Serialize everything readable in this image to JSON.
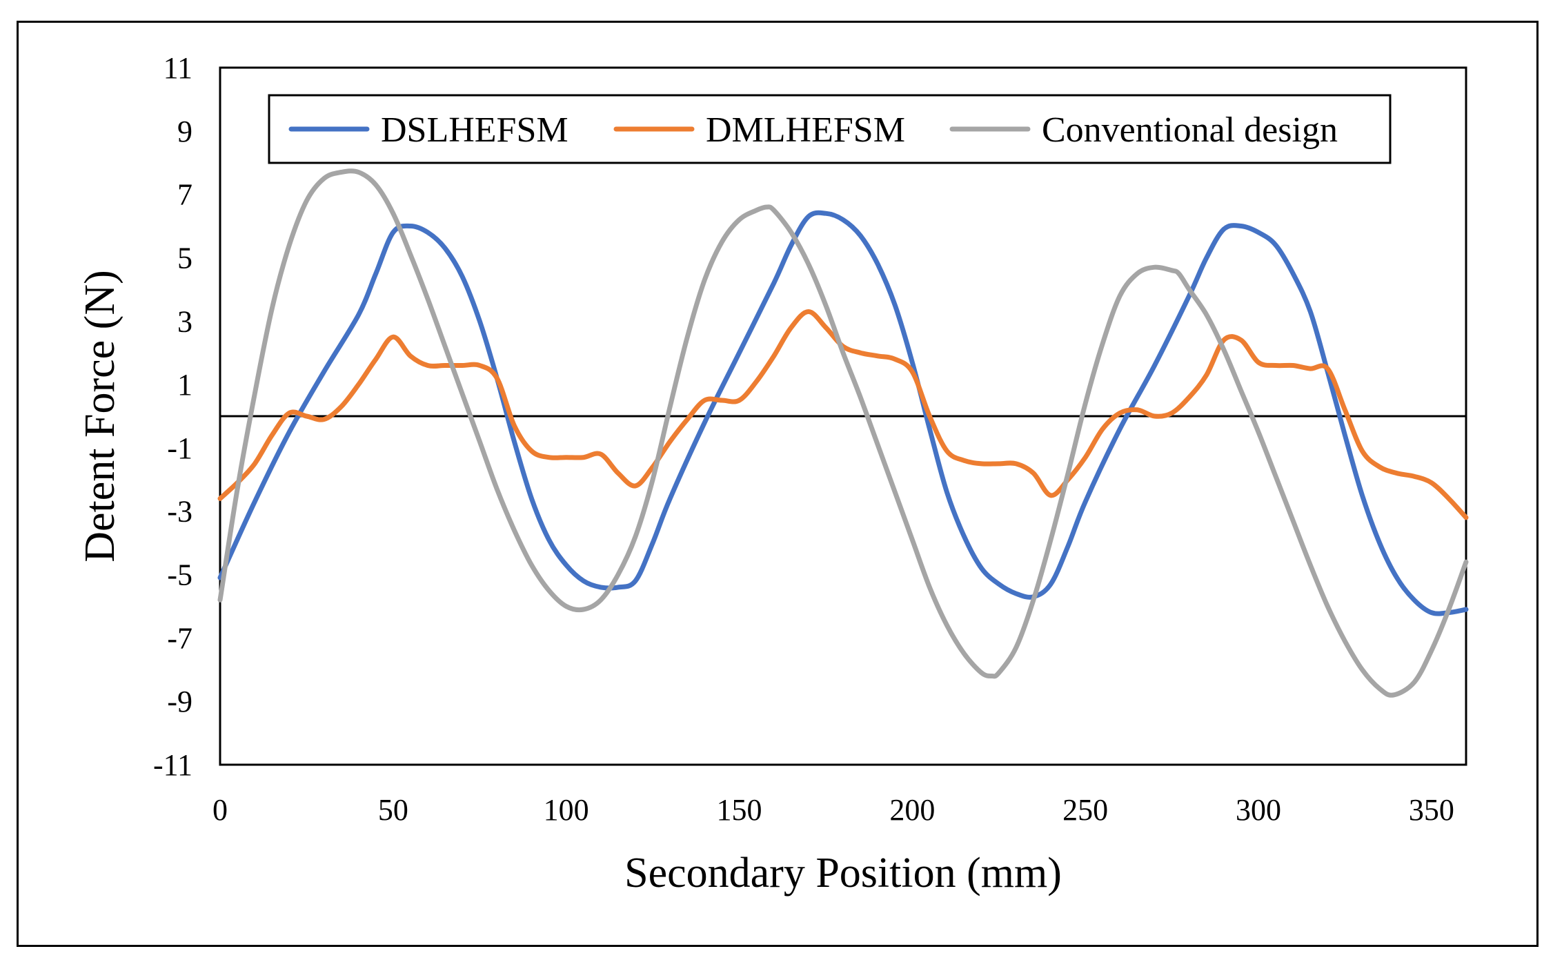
{
  "chart_data": {
    "type": "line",
    "title": "",
    "xlabel": "Secondary Position (mm)",
    "ylabel": "Detent Force (N)",
    "xlim": [
      0,
      360
    ],
    "ylim": [
      -11,
      11
    ],
    "xticks": [
      0,
      50,
      100,
      150,
      200,
      250,
      300,
      350
    ],
    "yticks": [
      -11,
      -9,
      -7,
      -5,
      -3,
      -1,
      1,
      3,
      5,
      7,
      9,
      11
    ],
    "grid": false,
    "legend_position": "top",
    "series": [
      {
        "name": "DSLHEFSM",
        "color": "#4472C4",
        "x": [
          0,
          10,
          20,
          30,
          40,
          45,
          50,
          55,
          60,
          65,
          70,
          75,
          80,
          85,
          90,
          95,
          100,
          105,
          110,
          115,
          120,
          125,
          130,
          140,
          150,
          160,
          165,
          170,
          175,
          180,
          185,
          190,
          195,
          200,
          205,
          210,
          215,
          220,
          225,
          230,
          235,
          240,
          245,
          250,
          260,
          270,
          280,
          285,
          290,
          295,
          300,
          305,
          310,
          315,
          320,
          325,
          330,
          335,
          340,
          345,
          350,
          355,
          360
        ],
        "y": [
          -5.1,
          -2.7,
          -0.5,
          1.4,
          3.2,
          4.5,
          5.8,
          6.0,
          5.8,
          5.3,
          4.4,
          3.0,
          1.2,
          -0.8,
          -2.6,
          -3.9,
          -4.7,
          -5.2,
          -5.4,
          -5.4,
          -5.2,
          -4.0,
          -2.6,
          -0.2,
          2.0,
          4.2,
          5.4,
          6.3,
          6.4,
          6.2,
          5.7,
          4.8,
          3.5,
          1.7,
          -0.4,
          -2.4,
          -3.8,
          -4.8,
          -5.3,
          -5.6,
          -5.7,
          -5.3,
          -4.1,
          -2.7,
          -0.4,
          1.6,
          3.8,
          5.0,
          5.9,
          6.0,
          5.8,
          5.4,
          4.5,
          3.3,
          1.4,
          -0.6,
          -2.5,
          -4.0,
          -5.1,
          -5.8,
          -6.2,
          -6.2,
          -6.1
        ]
      },
      {
        "name": "DMLHEFSM",
        "color": "#ED7D31",
        "x": [
          0,
          5,
          10,
          15,
          20,
          25,
          30,
          35,
          40,
          45,
          50,
          55,
          60,
          65,
          70,
          75,
          80,
          85,
          90,
          95,
          100,
          105,
          110,
          115,
          120,
          125,
          130,
          135,
          140,
          145,
          150,
          155,
          160,
          165,
          170,
          175,
          180,
          185,
          190,
          195,
          200,
          205,
          210,
          215,
          220,
          225,
          230,
          235,
          240,
          245,
          250,
          255,
          260,
          265,
          270,
          275,
          280,
          285,
          290,
          295,
          300,
          305,
          310,
          315,
          320,
          325,
          330,
          335,
          340,
          345,
          350,
          355,
          360
        ],
        "y": [
          -2.6,
          -2.1,
          -1.5,
          -0.6,
          0.1,
          0.0,
          -0.1,
          0.3,
          1.0,
          1.8,
          2.5,
          1.9,
          1.6,
          1.6,
          1.6,
          1.6,
          1.2,
          -0.3,
          -1.1,
          -1.3,
          -1.3,
          -1.3,
          -1.2,
          -1.8,
          -2.2,
          -1.6,
          -0.8,
          -0.1,
          0.5,
          0.5,
          0.5,
          1.1,
          1.9,
          2.8,
          3.3,
          2.8,
          2.2,
          2.0,
          1.9,
          1.8,
          1.4,
          0.0,
          -1.1,
          -1.4,
          -1.5,
          -1.5,
          -1.5,
          -1.8,
          -2.5,
          -2.0,
          -1.3,
          -0.4,
          0.1,
          0.2,
          0.0,
          0.1,
          0.6,
          1.3,
          2.4,
          2.4,
          1.7,
          1.6,
          1.6,
          1.5,
          1.5,
          0.2,
          -1.1,
          -1.6,
          -1.8,
          -1.9,
          -2.1,
          -2.6,
          -3.2
        ]
      },
      {
        "name": "Conventional design",
        "color": "#A5A5A5",
        "x": [
          0,
          5,
          10,
          15,
          20,
          25,
          30,
          35,
          40,
          45,
          50,
          55,
          60,
          65,
          70,
          75,
          80,
          85,
          90,
          95,
          100,
          105,
          110,
          115,
          120,
          125,
          130,
          135,
          140,
          145,
          150,
          155,
          158,
          160,
          165,
          170,
          175,
          180,
          185,
          190,
          195,
          200,
          205,
          210,
          215,
          220,
          223,
          225,
          230,
          235,
          240,
          245,
          250,
          255,
          260,
          265,
          270,
          275,
          277,
          280,
          285,
          290,
          295,
          300,
          305,
          310,
          315,
          320,
          325,
          330,
          335,
          339,
          345,
          350,
          355,
          360
        ],
        "y": [
          -5.8,
          -2.3,
          0.7,
          3.4,
          5.4,
          6.8,
          7.5,
          7.7,
          7.7,
          7.3,
          6.4,
          5.1,
          3.7,
          2.2,
          0.7,
          -0.8,
          -2.3,
          -3.6,
          -4.7,
          -5.5,
          -6.0,
          -6.1,
          -5.8,
          -5.0,
          -3.8,
          -2.0,
          0.3,
          2.5,
          4.3,
          5.5,
          6.2,
          6.5,
          6.6,
          6.5,
          5.8,
          4.8,
          3.5,
          2.0,
          0.6,
          -0.9,
          -2.4,
          -3.9,
          -5.4,
          -6.6,
          -7.5,
          -8.1,
          -8.2,
          -8.1,
          -7.3,
          -5.8,
          -3.9,
          -1.8,
          0.4,
          2.3,
          3.8,
          4.5,
          4.7,
          4.6,
          4.5,
          4.0,
          3.2,
          2.1,
          0.8,
          -0.5,
          -1.9,
          -3.3,
          -4.7,
          -6.0,
          -7.1,
          -8.0,
          -8.6,
          -8.8,
          -8.4,
          -7.4,
          -6.1,
          -4.6
        ]
      }
    ]
  }
}
